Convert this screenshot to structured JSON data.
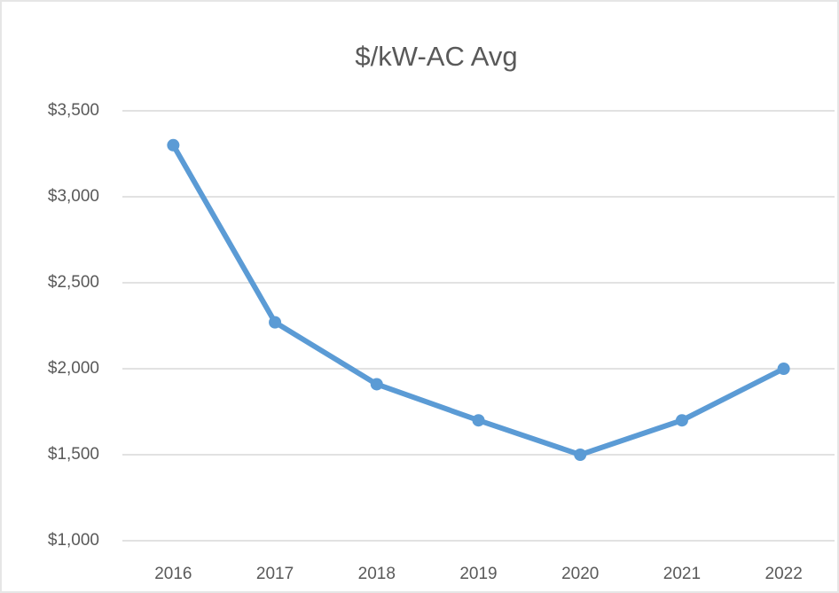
{
  "chart_data": {
    "type": "line",
    "title": "$/kW-AC Avg",
    "categories": [
      "2016",
      "2017",
      "2018",
      "2019",
      "2020",
      "2021",
      "2022"
    ],
    "series": [
      {
        "name": "$/kW-AC Avg",
        "color": "#5b9bd5",
        "values": [
          3300,
          2270,
          1910,
          1700,
          1500,
          1700,
          2000
        ]
      }
    ],
    "ylim": [
      1000,
      3500
    ],
    "yticks": [
      {
        "value": 1000,
        "label": "$1,000"
      },
      {
        "value": 1500,
        "label": "$1,500"
      },
      {
        "value": 2000,
        "label": "$2,000"
      },
      {
        "value": 2500,
        "label": "$2,500"
      },
      {
        "value": 3000,
        "label": "$3,000"
      },
      {
        "value": 3500,
        "label": "$3,500"
      }
    ],
    "grid": true
  }
}
